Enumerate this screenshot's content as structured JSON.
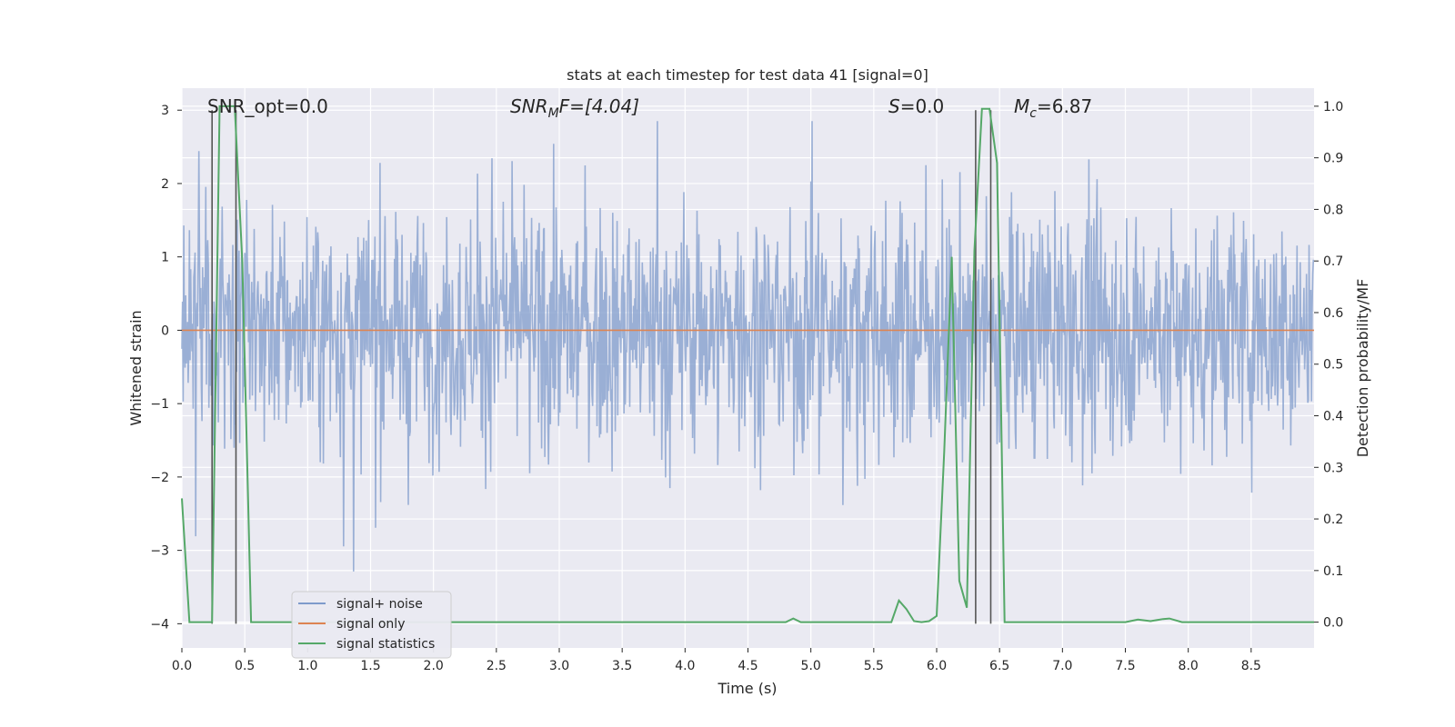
{
  "chart_data": {
    "type": "line",
    "title": "stats at each timestep for test data 41 [signal=0]",
    "xlabel": "Time (s)",
    "ylabel": "Whitened strain",
    "ylabel_right": "Detection probability/MF",
    "xlim": [
      0.0,
      9.0
    ],
    "ylim": [
      -4.33,
      3.3
    ],
    "ylim_right": [
      -0.05,
      1.035
    ],
    "x_ticks": [
      0.0,
      0.5,
      1.0,
      1.5,
      2.0,
      2.5,
      3.0,
      3.5,
      4.0,
      4.5,
      5.0,
      5.5,
      6.0,
      6.5,
      7.0,
      7.5,
      8.0,
      8.5
    ],
    "x_tick_labels": [
      "0.0",
      "0.5",
      "1.0",
      "1.5",
      "2.0",
      "2.5",
      "3.0",
      "3.5",
      "4.0",
      "4.5",
      "5.0",
      "5.5",
      "6.0",
      "6.5",
      "7.0",
      "7.5",
      "8.0",
      "8.5"
    ],
    "y_ticks": [
      3,
      2,
      1,
      0,
      -1,
      -2,
      -3,
      -4
    ],
    "y_tick_labels": [
      "3",
      "2",
      "1",
      "0",
      "−1",
      "−2",
      "−3",
      "−4"
    ],
    "y_ticks_right": [
      1.0,
      0.9,
      0.8,
      0.7,
      0.6,
      0.5,
      0.4,
      0.3,
      0.2,
      0.1,
      0.0
    ],
    "y_tick_labels_right": [
      "1.0",
      "0.9",
      "0.8",
      "0.7",
      "0.6",
      "0.5",
      "0.4",
      "0.3",
      "0.2",
      "0.1",
      "0.0"
    ],
    "grid": true,
    "legend_position": "lower-left",
    "annotations": {
      "snr_opt": "SNR_opt=0.0",
      "snr_mf_prefix": "SNR",
      "snr_mf_sub": "M",
      "snr_mf_suffix": "F=[4.04]",
      "s_main": "S",
      "s_rest": "=0.0",
      "mc_main": "M",
      "mc_sub": "c",
      "mc_rest": "=6.87"
    },
    "vertical_markers": [
      {
        "x": 0.24,
        "ymin": -4.0,
        "ymax": 3.0
      },
      {
        "x": 0.43,
        "ymin": -4.0,
        "ymax": 3.0
      },
      {
        "x": 6.31,
        "ymin": -4.0,
        "ymax": 3.0
      },
      {
        "x": 6.43,
        "ymin": -4.0,
        "ymax": 3.0
      }
    ],
    "series": [
      {
        "name": "signal+ noise",
        "color": "#7f9bcb",
        "axis": "left",
        "description_amplitude": [
          -2.6,
          2.6
        ],
        "sample_rate_hz": 200
      },
      {
        "name": "signal only",
        "color": "#dd8452",
        "axis": "left",
        "x": [
          0.0,
          9.0
        ],
        "y": [
          0.0,
          0.0
        ]
      },
      {
        "name": "signal statistics",
        "color": "#55a868",
        "axis": "right",
        "x": [
          0.0,
          0.06,
          0.12,
          0.18,
          0.24,
          0.3,
          0.36,
          0.42,
          0.48,
          0.55,
          0.6,
          1.0,
          2.0,
          3.0,
          4.0,
          4.8,
          4.86,
          4.92,
          5.0,
          5.2,
          5.5,
          5.64,
          5.7,
          5.76,
          5.82,
          5.88,
          5.94,
          6.0,
          6.06,
          6.12,
          6.18,
          6.24,
          6.3,
          6.36,
          6.42,
          6.48,
          6.54,
          6.6,
          7.0,
          7.2,
          7.5,
          7.6,
          7.7,
          7.8,
          7.85,
          7.95,
          8.5,
          9.0
        ],
        "y": [
          0.24,
          0.0,
          0.0,
          0.0,
          0.0,
          1.0,
          1.0,
          1.0,
          0.7,
          0.0,
          0.0,
          0.0,
          0.0,
          0.0,
          0.0,
          0.0,
          0.007,
          0.0,
          0.0,
          0.0,
          0.0,
          0.0,
          0.042,
          0.025,
          0.002,
          0.0,
          0.002,
          0.012,
          0.33,
          0.708,
          0.08,
          0.028,
          0.72,
          0.995,
          0.995,
          0.89,
          0.0,
          0.0,
          0.0,
          0.0,
          0.0,
          0.005,
          0.002,
          0.006,
          0.007,
          0.0,
          0.0,
          0.0
        ]
      }
    ]
  }
}
